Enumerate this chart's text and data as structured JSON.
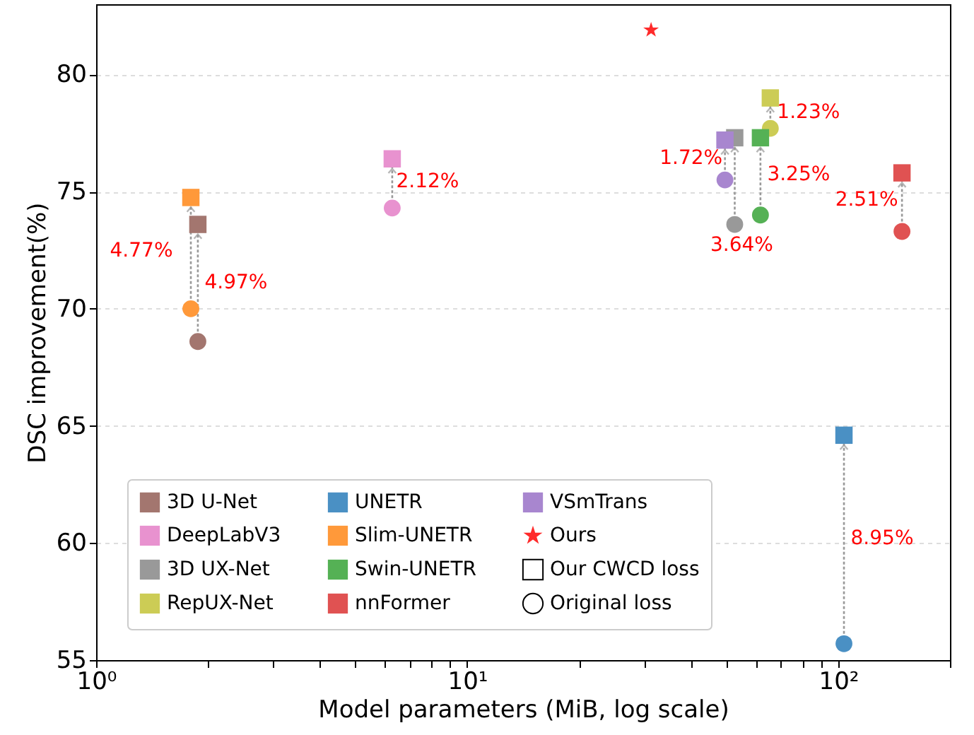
{
  "chart_data": {
    "type": "scatter",
    "xlabel": "Model parameters (MiB, log scale)",
    "ylabel": "DSC improvement(%)",
    "log": "x",
    "xlim": [
      1,
      200
    ],
    "xticks": [
      {
        "value": 1,
        "label": "10⁰"
      },
      {
        "value": 2,
        "label": null
      },
      {
        "value": 3,
        "label": null
      },
      {
        "value": 4,
        "label": null
      },
      {
        "value": 5,
        "label": null
      },
      {
        "value": 6,
        "label": null
      },
      {
        "value": 7,
        "label": null
      },
      {
        "value": 8,
        "label": null
      },
      {
        "value": 9,
        "label": null
      },
      {
        "value": 10,
        "label": "10¹"
      },
      {
        "value": 20,
        "label": null
      },
      {
        "value": 30,
        "label": null
      },
      {
        "value": 40,
        "label": null
      },
      {
        "value": 50,
        "label": null
      },
      {
        "value": 60,
        "label": null
      },
      {
        "value": 70,
        "label": null
      },
      {
        "value": 80,
        "label": null
      },
      {
        "value": 90,
        "label": null
      },
      {
        "value": 100,
        "label": "10²"
      },
      {
        "value": 200,
        "label": null
      }
    ],
    "ylim": [
      55,
      83
    ],
    "yticks": [
      55,
      60,
      65,
      70,
      75,
      80
    ],
    "grid": "y",
    "legend": "bottom left",
    "series": [
      {
        "name": "3D U-Net",
        "color": "#a3766f",
        "marker": "square",
        "x": [
          1.88
        ],
        "values": [
          73.6
        ]
      },
      {
        "color": "#a3766f",
        "marker": "circle",
        "x": [
          1.88
        ],
        "values": [
          68.6
        ]
      },
      {
        "name": "DeepLabV3",
        "color": "#e892cf",
        "marker": "square",
        "x": [
          6.28
        ],
        "values": [
          76.4
        ]
      },
      {
        "color": "#e892cf",
        "marker": "circle",
        "x": [
          6.28
        ],
        "values": [
          74.3
        ]
      },
      {
        "name": "3D UX-Net",
        "color": "#999999",
        "marker": "square",
        "x": [
          52.6
        ],
        "values": [
          77.3
        ]
      },
      {
        "color": "#999999",
        "marker": "circle",
        "x": [
          52.6
        ],
        "values": [
          73.6
        ]
      },
      {
        "name": "RepUX-Net",
        "color": "#cccc55",
        "marker": "square",
        "x": [
          65.6
        ],
        "values": [
          79.0
        ]
      },
      {
        "color": "#cccc55",
        "marker": "circle",
        "x": [
          65.6
        ],
        "values": [
          77.7
        ]
      },
      {
        "name": "UNETR",
        "color": "#4a90c4",
        "marker": "square",
        "x": [
          103.6
        ],
        "values": [
          64.6
        ]
      },
      {
        "color": "#4a90c4",
        "marker": "circle",
        "x": [
          103.6
        ],
        "values": [
          55.7
        ]
      },
      {
        "name": "Slim-UNETR",
        "color": "#ff993a",
        "marker": "square",
        "x": [
          1.8
        ],
        "values": [
          74.75
        ]
      },
      {
        "color": "#ff993a",
        "marker": "circle",
        "x": [
          1.8
        ],
        "values": [
          70.0
        ]
      },
      {
        "name": "Swin-UNETR",
        "color": "#55b155",
        "marker": "square",
        "x": [
          61.7
        ],
        "values": [
          77.3
        ]
      },
      {
        "color": "#55b155",
        "marker": "circle",
        "x": [
          61.7
        ],
        "values": [
          74.0
        ]
      },
      {
        "name": "nnFormer",
        "color": "#e05252",
        "marker": "square",
        "x": [
          148.5
        ],
        "values": [
          75.8
        ]
      },
      {
        "color": "#e05252",
        "marker": "circle",
        "x": [
          148.5
        ],
        "values": [
          73.3
        ]
      },
      {
        "name": "VSmTrans",
        "color": "#a886cf",
        "marker": "square",
        "x": [
          49.5
        ],
        "values": [
          77.2
        ]
      },
      {
        "color": "#a886cf",
        "marker": "circle",
        "x": [
          49.5
        ],
        "values": [
          75.5
        ]
      },
      {
        "name": "Ours",
        "color": "#ff2a2a",
        "marker": "star",
        "x": [
          31.3
        ],
        "values": [
          81.9
        ]
      },
      {
        "name": "Our CWCD loss",
        "marker": "square"
      },
      {
        "name": "Original loss",
        "marker": "circle"
      }
    ],
    "annotations": [
      {
        "text": "4.97%",
        "x": 1.88,
        "y": 73.6
      },
      {
        "text": "2.12%",
        "x": 6.28,
        "y": 76.4
      },
      {
        "text": "3.64%",
        "x": 52.6,
        "y": 77.3
      },
      {
        "text": "1.23%",
        "x": 65.6,
        "y": 79.0
      },
      "8.95%",
      {
        "text": "4.77%",
        "x": 1.8,
        "y": 74.75
      },
      {
        "text": "3.25%",
        "x": 61.7,
        "y": 77.3
      },
      {
        "text": "2.51%",
        "x": 148.5,
        "y": 75.8
      },
      {
        "text": "1.72%",
        "x": 49.5,
        "y": 77.2
      }
    ]
  }
}
